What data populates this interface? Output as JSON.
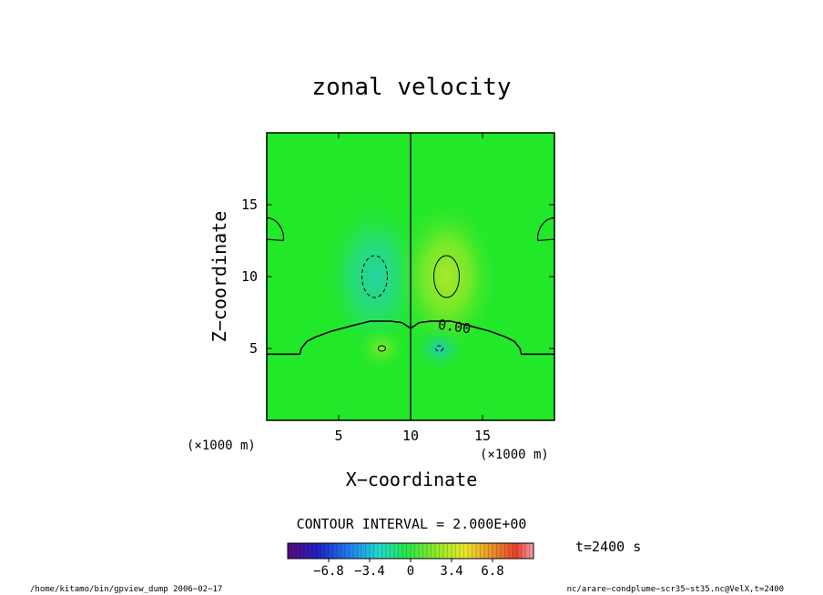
{
  "chart_data": {
    "type": "heatmap",
    "title": "zonal velocity",
    "xlabel": "X−coordinate",
    "ylabel": "Z−coordinate",
    "x_unit": "(×1000 m)",
    "y_unit": "(×1000 m)",
    "xlim": [
      0,
      20
    ],
    "ylim": [
      0,
      20
    ],
    "x_ticks": [
      5,
      10,
      15
    ],
    "x_tick_labels": [
      "5",
      "10",
      "15"
    ],
    "y_ticks": [
      5,
      10,
      15
    ],
    "y_tick_labels": [
      "5",
      "10",
      "15"
    ],
    "contour_interval_text": "CONTOUR INTERVAL = 2.000E+00",
    "contour_label": "0.00",
    "colorbar": {
      "range": [
        -10.2,
        10.2
      ],
      "ticks": [
        -6.8,
        -3.4,
        0,
        3.4,
        6.8
      ],
      "tick_labels": [
        "−6.8",
        "−3.4",
        "0",
        "3.4",
        "6.8"
      ]
    },
    "field_features": [
      {
        "kind": "negative",
        "x": 7.5,
        "z": 10.0,
        "value": -3.2
      },
      {
        "kind": "positive",
        "x": 12.5,
        "z": 10.0,
        "value": 3.0
      },
      {
        "kind": "positive",
        "x": 8.0,
        "z": 5.0,
        "value": 1.4
      },
      {
        "kind": "negative",
        "x": 12.0,
        "z": 5.0,
        "value": -2.3
      },
      {
        "kind": "divider",
        "x": 10.0
      }
    ],
    "zero_contour": [
      [
        0,
        4.6
      ],
      [
        2.3,
        4.6
      ],
      [
        2.4,
        5.0
      ],
      [
        2.8,
        5.5
      ],
      [
        3.4,
        5.8
      ],
      [
        4.5,
        6.2
      ],
      [
        6.0,
        6.6
      ],
      [
        7.2,
        6.9
      ],
      [
        8.6,
        6.9
      ],
      [
        9.4,
        6.8
      ],
      [
        10.0,
        6.4
      ],
      [
        10.6,
        6.8
      ],
      [
        11.4,
        6.9
      ],
      [
        12.8,
        6.9
      ],
      [
        14.0,
        6.6
      ],
      [
        15.5,
        6.2
      ],
      [
        16.6,
        5.8
      ],
      [
        17.2,
        5.5
      ],
      [
        17.6,
        5.0
      ],
      [
        17.7,
        4.6
      ],
      [
        20,
        4.6
      ]
    ]
  },
  "annotations": {
    "time": "t=2400 s",
    "footer_left": "/home/kitamo/bin/gpview_dump  2006−02−17",
    "footer_right": "nc/arare−condplume−scr35−st35.nc@VelX,t=2400"
  },
  "colors": {
    "background_field": "#22e82a",
    "frame": "#000000",
    "colormap": [
      "#5a0a7a",
      "#1a1ad0",
      "#1f8cf0",
      "#22d8d0",
      "#22e84a",
      "#8ce82a",
      "#e8e82a",
      "#e8a02a",
      "#e8502a",
      "#f08c9c"
    ]
  }
}
